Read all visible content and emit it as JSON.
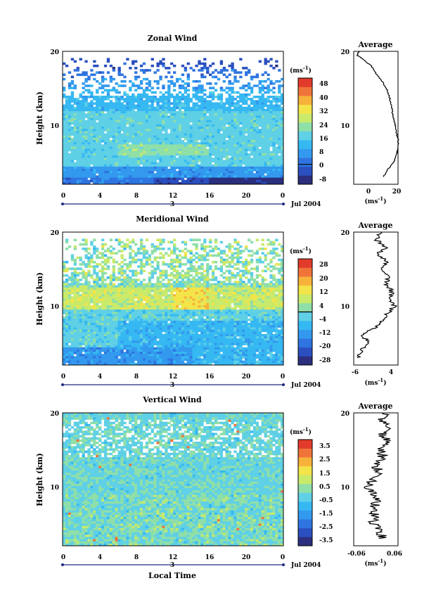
{
  "colors": {
    "colormap": [
      "#2b2f7d",
      "#2b4fbf",
      "#2f74e0",
      "#3399ee",
      "#36b8f2",
      "#5fd0e6",
      "#8fdfa8",
      "#c9ea6a",
      "#f3e44a",
      "#f7b23a",
      "#f0743a",
      "#e23b2b"
    ],
    "gap": "#ffffff",
    "time_axis": "#1f2a80"
  },
  "chart_data": [
    {
      "type": "heatmap",
      "title": "Zonal Wind",
      "ylabel": "Height (km)",
      "ylim": [
        2,
        20
      ],
      "yticks": [
        "20",
        "10"
      ],
      "xlim": [
        0,
        24
      ],
      "xticks": [
        "0",
        "4",
        "8",
        "12",
        "16",
        "20",
        "0"
      ],
      "date_tick": "3",
      "date_label": "Jul 2004",
      "colorbar": {
        "unit": "(ms",
        "unit_exp": "-1",
        "unit_close": ")",
        "ticks": [
          "48",
          "40",
          "32",
          "24",
          "16",
          "8",
          "0",
          "-8"
        ],
        "vmin": -12,
        "vmax": 52,
        "contour": 0
      },
      "average": {
        "title": "Average",
        "xlabel": "(ms",
        "xlabel_exp": "-1",
        "xlabel_close": ")",
        "xlim": [
          -10,
          20
        ],
        "xticks": [
          "0",
          "20"
        ],
        "yticks": [
          "20",
          "10"
        ],
        "profile": [
          [
            3,
            10
          ],
          [
            4,
            13
          ],
          [
            5,
            17
          ],
          [
            6,
            19
          ],
          [
            7,
            20
          ],
          [
            8,
            20
          ],
          [
            9,
            19
          ],
          [
            10,
            18
          ],
          [
            11,
            17
          ],
          [
            12,
            16
          ],
          [
            13,
            15
          ],
          [
            14,
            14
          ],
          [
            15,
            12
          ],
          [
            16,
            9
          ],
          [
            17,
            5
          ],
          [
            18,
            2
          ],
          [
            19,
            -4
          ],
          [
            19.5,
            -8
          ],
          [
            20,
            -6
          ]
        ]
      }
    },
    {
      "type": "heatmap",
      "title": "Meridional Wind",
      "ylabel": "Height (km)",
      "ylim": [
        2,
        20
      ],
      "yticks": [
        "20",
        "10"
      ],
      "xlim": [
        0,
        24
      ],
      "xticks": [
        "0",
        "4",
        "8",
        "12",
        "16",
        "20",
        "0"
      ],
      "date_tick": "3",
      "date_label": "Jul 2004",
      "colorbar": {
        "unit": "(ms",
        "unit_exp": "-1",
        "unit_close": ")",
        "ticks": [
          "28",
          "20",
          "12",
          "4",
          "-4",
          "-12",
          "-20",
          "-28"
        ],
        "vmin": -32,
        "vmax": 32,
        "contour": 0
      },
      "average": {
        "title": "Average",
        "xlabel": "(ms",
        "xlabel_exp": "-1",
        "xlabel_close": ")",
        "xlim": [
          -6,
          5
        ],
        "xticks": [
          "-6",
          "4"
        ],
        "yticks": [
          "20",
          "10"
        ],
        "profile": [
          [
            3,
            -5
          ],
          [
            4,
            -4
          ],
          [
            5,
            -2
          ],
          [
            6,
            -4
          ],
          [
            7,
            -1
          ],
          [
            8,
            1
          ],
          [
            9,
            2.5
          ],
          [
            10,
            4
          ],
          [
            11,
            3
          ],
          [
            12,
            3.5
          ],
          [
            13,
            2
          ],
          [
            14,
            2.5
          ],
          [
            15,
            1
          ],
          [
            16,
            2.5
          ],
          [
            17,
            0
          ],
          [
            18,
            2
          ],
          [
            19,
            -0.5
          ],
          [
            20,
            1
          ]
        ]
      }
    },
    {
      "type": "heatmap",
      "title": "Vertical Wind",
      "ylabel": "Height (km)",
      "xlabel": "Local Time",
      "ylim": [
        2,
        20
      ],
      "yticks": [
        "20",
        "10"
      ],
      "xlim": [
        0,
        24
      ],
      "xticks": [
        "0",
        "4",
        "8",
        "12",
        "16",
        "20",
        "0"
      ],
      "date_tick": "3",
      "date_label": "Jul 2004",
      "colorbar": {
        "unit": "(ms",
        "unit_exp": "-1",
        "unit_close": ")",
        "ticks": [
          "3.5",
          "2.5",
          "1.5",
          "0.5",
          "-0.5",
          "-1.5",
          "-2.5",
          "-3.5"
        ],
        "vmin": -4,
        "vmax": 4,
        "contour": null
      },
      "average": {
        "title": "Average",
        "xlabel": "(ms",
        "xlabel_exp": "-1",
        "xlabel_close": ")",
        "xlim": [
          -0.06,
          0.06
        ],
        "xticks": [
          "-0.06",
          "0.06"
        ],
        "yticks": [
          "20",
          "10"
        ],
        "profile": [
          [
            3,
            0.02
          ],
          [
            4,
            0.01
          ],
          [
            5,
            -0.01
          ],
          [
            6,
            0.0
          ],
          [
            7,
            -0.005
          ],
          [
            8,
            0.0
          ],
          [
            9,
            -0.01
          ],
          [
            10,
            -0.02
          ],
          [
            11,
            -0.01
          ],
          [
            12,
            0.01
          ],
          [
            13,
            0.0
          ],
          [
            14,
            0.02
          ],
          [
            15,
            0.01
          ],
          [
            16,
            0.03
          ],
          [
            17,
            0.02
          ],
          [
            18,
            0.03
          ],
          [
            19,
            0.02
          ],
          [
            20,
            0.02
          ]
        ]
      }
    }
  ]
}
